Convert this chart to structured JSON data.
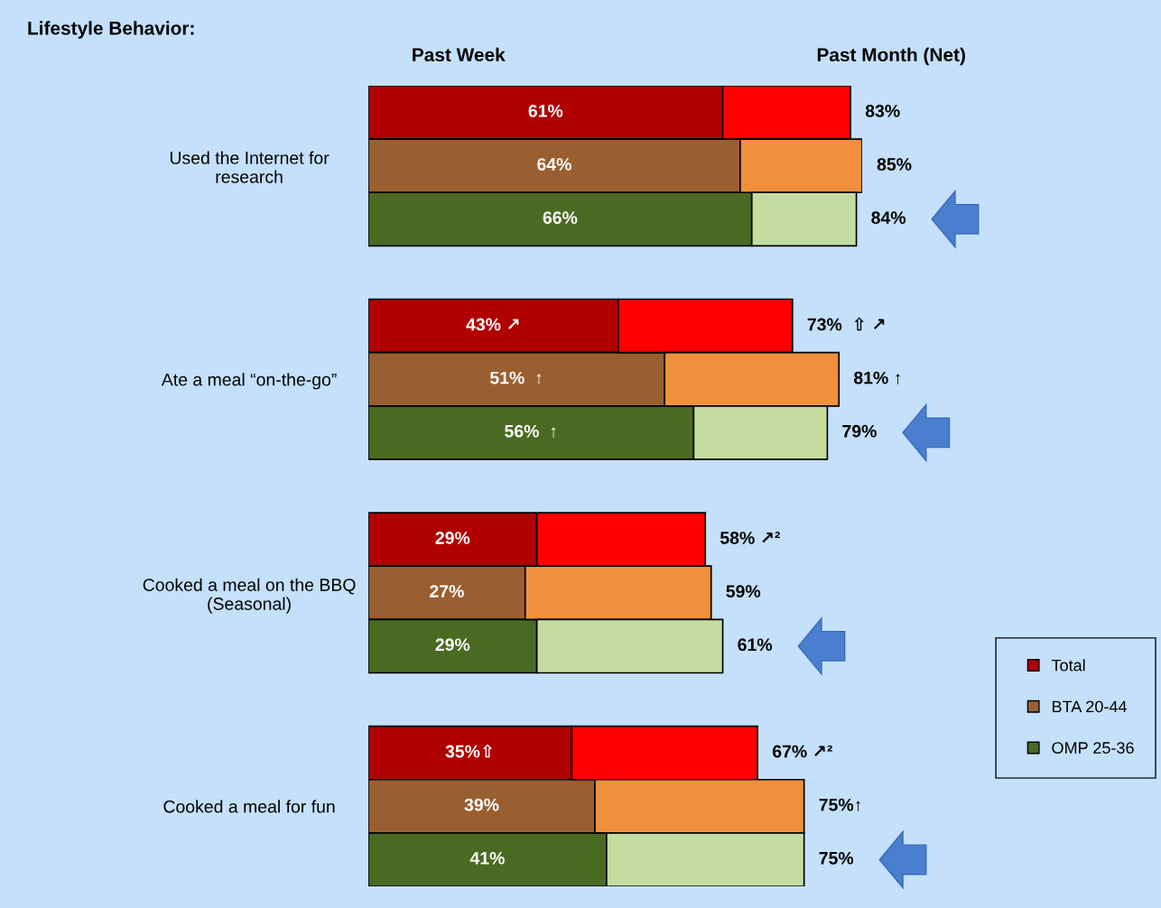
{
  "chart_data": {
    "type": "bar",
    "orientation": "horizontal",
    "stacked": true,
    "title": "Lifestyle Behavior:",
    "categories": [
      null,
      "Used the Internet for\nresearch",
      null,
      null,
      null,
      "Ate a meal “on-the-go”",
      null,
      null,
      null,
      "Cooked a meal on the BBQ\n(Seasonal)",
      null,
      null,
      null,
      "Cooked a meal for fun",
      null
    ],
    "series": [
      {
        "name": "Total",
        "color": "#b00000",
        "values": [
          61,
          null,
          null,
          null,
          43,
          null,
          null,
          null,
          29,
          null,
          null,
          null,
          35,
          null,
          null
        ],
        "value_labels": [
          "61%",
          null,
          null,
          null,
          "43% ↗",
          null,
          null,
          null,
          "29%",
          null,
          null,
          null,
          "35%⇧",
          null,
          null
        ]
      },
      {
        "name": "BTA 20-44",
        "color": "#9a5f30",
        "values": [
          null,
          64,
          null,
          null,
          null,
          51,
          null,
          null,
          null,
          27,
          null,
          null,
          null,
          39,
          null
        ],
        "value_labels": [
          null,
          "64%",
          null,
          null,
          null,
          "51%  ↑",
          null,
          null,
          null,
          "27%",
          null,
          null,
          null,
          "39%",
          null
        ]
      },
      {
        "name": "OMP 25-36",
        "color": "#4a6a22",
        "values": [
          null,
          null,
          66,
          null,
          null,
          null,
          56,
          null,
          null,
          null,
          29,
          null,
          null,
          null,
          41
        ],
        "value_labels": [
          null,
          null,
          "66%",
          null,
          null,
          null,
          "56%  ↑",
          null,
          null,
          null,
          "29%",
          null,
          null,
          null,
          "41%"
        ]
      },
      {
        "color": "#ff0000",
        "values": [
          22,
          null,
          null,
          null,
          30,
          null,
          null,
          null,
          29,
          null,
          null,
          null,
          32,
          null,
          null
        ]
      },
      {
        "color": "#f0903c",
        "values": [
          null,
          21,
          null,
          null,
          null,
          30,
          null,
          null,
          null,
          32,
          null,
          null,
          null,
          36,
          null
        ]
      },
      {
        "color": "#c5dca0",
        "values": [
          null,
          null,
          18,
          null,
          null,
          null,
          23,
          null,
          null,
          null,
          32,
          null,
          null,
          null,
          34
        ]
      }
    ],
    "totals": [
      "83%",
      "85%",
      "84%",
      null,
      "73%  ⇧ ↗",
      "81% ↑",
      "79%",
      null,
      "58% ↗²",
      "59%",
      "61%",
      null,
      "67% ↗²",
      "75%↑",
      "75%"
    ],
    "tick_labels": "y",
    "legend": "bottom right",
    "annotations": [
      "Past Week",
      "Past Month (Net)"
    ]
  }
}
